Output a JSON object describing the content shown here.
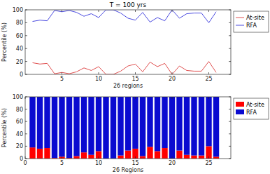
{
  "chart_data": [
    {
      "type": "line",
      "title": "T = 100 yrs",
      "x_label": "26 regions",
      "y_label": "Percentile (%)",
      "x": [
        1,
        2,
        3,
        4,
        5,
        6,
        7,
        8,
        9,
        10,
        11,
        12,
        13,
        14,
        15,
        16,
        17,
        18,
        19,
        20,
        21,
        22,
        23,
        24,
        25,
        26
      ],
      "series": [
        {
          "name": "At-site",
          "color": "#e05050",
          "values": [
            18,
            16,
            17,
            1,
            3,
            1,
            4,
            10,
            6,
            12,
            0,
            0,
            5,
            13,
            16,
            4,
            19,
            12,
            17,
            0,
            13,
            6,
            5,
            5,
            20,
            3
          ]
        },
        {
          "name": "RFA",
          "color": "#4a4ae0",
          "values": [
            82,
            84,
            83,
            99,
            97,
            99,
            96,
            90,
            94,
            88,
            100,
            100,
            95,
            87,
            84,
            96,
            81,
            88,
            83,
            100,
            87,
            94,
            95,
            95,
            80,
            97
          ]
        }
      ],
      "xlim": [
        0,
        28
      ],
      "ylim": [
        0,
        100
      ],
      "xticks": [
        5,
        10,
        15,
        20,
        25
      ],
      "yticks": [
        0,
        20,
        40,
        60,
        80,
        100
      ],
      "legend": "right"
    },
    {
      "type": "bar",
      "stacked": true,
      "x_label": "26 Regions",
      "y_label": "Percentile (%)",
      "x": [
        1,
        2,
        3,
        4,
        5,
        6,
        7,
        8,
        9,
        10,
        11,
        12,
        13,
        14,
        15,
        16,
        17,
        18,
        19,
        20,
        21,
        22,
        23,
        24,
        25,
        26
      ],
      "series": [
        {
          "name": "At-site",
          "color": "#ff0000",
          "values": [
            18,
            16,
            17,
            1,
            3,
            1,
            4,
            10,
            6,
            12,
            0,
            0,
            5,
            13,
            16,
            4,
            19,
            12,
            17,
            0,
            13,
            6,
            5,
            5,
            20,
            3
          ]
        },
        {
          "name": "RFA",
          "color": "#0a0ad0",
          "values": [
            82,
            84,
            83,
            99,
            97,
            99,
            96,
            90,
            94,
            88,
            100,
            100,
            95,
            87,
            84,
            96,
            81,
            88,
            83,
            100,
            87,
            94,
            95,
            95,
            80,
            97
          ]
        }
      ],
      "xlim": [
        0,
        28
      ],
      "ylim": [
        0,
        100
      ],
      "xticks": [
        0,
        5,
        10,
        15,
        20,
        25
      ],
      "yticks": [
        0,
        20,
        40,
        60,
        80,
        100
      ],
      "legend": "right"
    }
  ]
}
